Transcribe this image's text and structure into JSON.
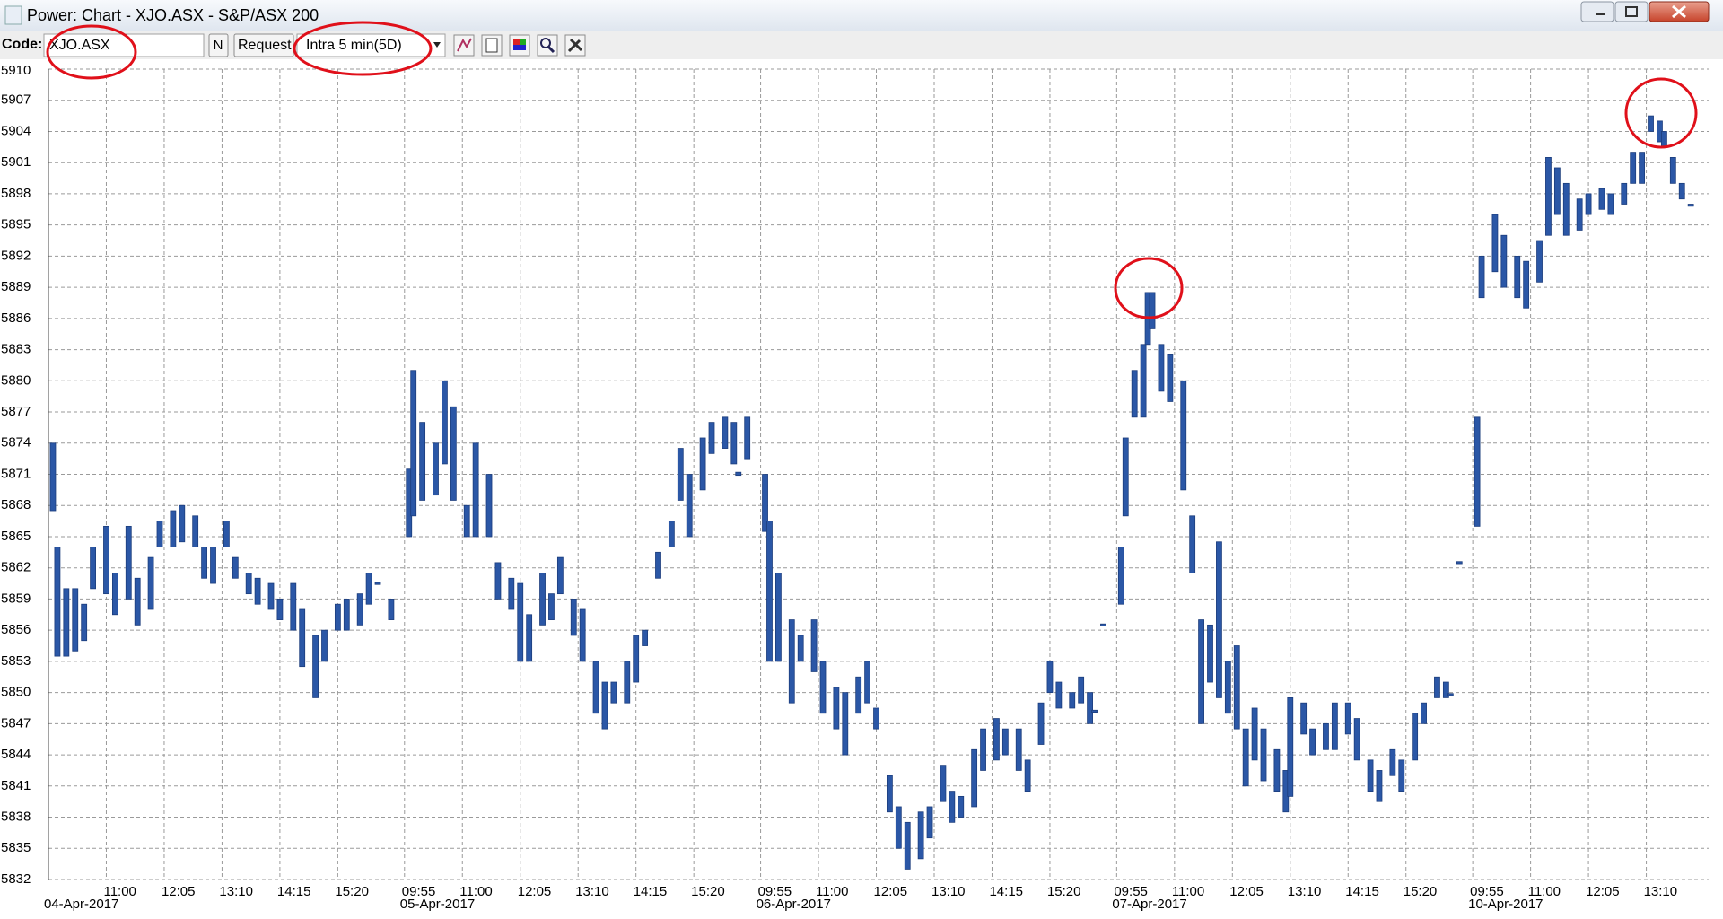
{
  "window": {
    "title": "Power: Chart - XJO.ASX - S&P/ASX 200"
  },
  "toolbar": {
    "code_label": "Code:",
    "code_value": "XJO.ASX",
    "n_button": "N",
    "request_button": "Request",
    "interval": "Intra 5 min(5D)"
  },
  "chart_data": {
    "type": "range",
    "color": "#2b57a6",
    "grid": true,
    "xlim": [
      -1,
      372
    ],
    "ylim": [
      5832,
      5910
    ],
    "yticks": [
      5832,
      5835,
      5838,
      5841,
      5844,
      5847,
      5850,
      5853,
      5856,
      5859,
      5862,
      5865,
      5868,
      5871,
      5874,
      5877,
      5880,
      5883,
      5886,
      5889,
      5892,
      5895,
      5898,
      5901,
      5904,
      5907,
      5910
    ],
    "xticks": [
      {
        "value": 12,
        "label": "11:00"
      },
      {
        "value": 25,
        "label": "12:05"
      },
      {
        "value": 38,
        "label": "13:10"
      },
      {
        "value": 51,
        "label": "14:15"
      },
      {
        "value": 64,
        "label": "15:20"
      },
      {
        "value": 79,
        "label": "09:55"
      },
      {
        "value": 92,
        "label": "11:00"
      },
      {
        "value": 105,
        "label": "12:05"
      },
      {
        "value": 118,
        "label": "13:10"
      },
      {
        "value": 131,
        "label": "14:15"
      },
      {
        "value": 144,
        "label": "15:20"
      },
      {
        "value": 159,
        "label": "09:55"
      },
      {
        "value": 172,
        "label": "11:00"
      },
      {
        "value": 185,
        "label": "12:05"
      },
      {
        "value": 198,
        "label": "13:10"
      },
      {
        "value": 211,
        "label": "14:15"
      },
      {
        "value": 224,
        "label": "15:20"
      },
      {
        "value": 239,
        "label": "09:55"
      },
      {
        "value": 252,
        "label": "11:00"
      },
      {
        "value": 265,
        "label": "12:05"
      },
      {
        "value": 278,
        "label": "13:10"
      },
      {
        "value": 291,
        "label": "14:15"
      },
      {
        "value": 304,
        "label": "15:20"
      },
      {
        "value": 319,
        "label": "09:55"
      },
      {
        "value": 332,
        "label": "11:00"
      },
      {
        "value": 345,
        "label": "12:05"
      },
      {
        "value": 358,
        "label": "13:10"
      }
    ],
    "date_labels": [
      {
        "value": -1,
        "label": "04-Apr-2017"
      },
      {
        "value": 79,
        "label": "05-Apr-2017"
      },
      {
        "value": 159,
        "label": "06-Apr-2017"
      },
      {
        "value": 239,
        "label": "07-Apr-2017"
      },
      {
        "value": 319,
        "label": "10-Apr-2017"
      }
    ],
    "bars": {
      "x": [
        0,
        1,
        3,
        5,
        7,
        9,
        12,
        14,
        17,
        19,
        22,
        24,
        27,
        29,
        32,
        34,
        36,
        39,
        41,
        44,
        46,
        49,
        51,
        54,
        56,
        59,
        61,
        64,
        66,
        69,
        71,
        73,
        76,
        80,
        81,
        83,
        86,
        88,
        90,
        93,
        95,
        98,
        100,
        103,
        105,
        107,
        110,
        112,
        114,
        117,
        119,
        122,
        124,
        126,
        129,
        131,
        133,
        136,
        139,
        141,
        143,
        146,
        148,
        151,
        153,
        154,
        156,
        160,
        161,
        163,
        166,
        168,
        171,
        173,
        176,
        178,
        181,
        183,
        185,
        188,
        190,
        192,
        195,
        197,
        200,
        202,
        204,
        207,
        209,
        212,
        214,
        217,
        219,
        222,
        224,
        226,
        229,
        231,
        233,
        234,
        236,
        240,
        241,
        243,
        245,
        246,
        247,
        249,
        251,
        254,
        256,
        258,
        260,
        262,
        264,
        266,
        268,
        270,
        272,
        275,
        277,
        278,
        281,
        283,
        286,
        288,
        291,
        293,
        296,
        298,
        301,
        303,
        306,
        308,
        311,
        313,
        314,
        316,
        320,
        321,
        324,
        326,
        329,
        331,
        334,
        336,
        338,
        340,
        343,
        345,
        348,
        350,
        353,
        355,
        357,
        359,
        361,
        362,
        364,
        366,
        368
      ],
      "low": [
        5867.5,
        5853.5,
        5853.5,
        5854,
        5855,
        5860,
        5859.5,
        5857.5,
        5859,
        5856.5,
        5858,
        5864,
        5864,
        5864.5,
        5864,
        5861,
        5860.5,
        5864,
        5861,
        5859.5,
        5858.5,
        5858,
        5857,
        5856,
        5852.5,
        5849.5,
        5853,
        5856,
        5856,
        5856.5,
        5858.5,
        5860.4,
        5857,
        5865,
        5867,
        5868.5,
        5869,
        5872,
        5868.5,
        5865,
        5865,
        5865,
        5859,
        5858,
        5853,
        5853,
        5856.5,
        5857,
        5859.5,
        5855.5,
        5853,
        5848,
        5846.5,
        5849,
        5849,
        5851,
        5854.5,
        5861,
        5864,
        5868.5,
        5865,
        5869.5,
        5873,
        5873.5,
        5872,
        5870.9,
        5872.5,
        5865.5,
        5853,
        5853,
        5849,
        5853,
        5852,
        5848,
        5846.5,
        5844,
        5848,
        5849,
        5846.5,
        5838.5,
        5835,
        5833,
        5834,
        5836,
        5839.5,
        5837.5,
        5838,
        5839,
        5842.5,
        5843.5,
        5844,
        5842.5,
        5840.5,
        5845,
        5850,
        5848.5,
        5848.5,
        5849,
        5847,
        5848.1,
        5856.4,
        5858.5,
        5867,
        5876.5,
        5876.5,
        5883.5,
        5885,
        5879,
        5878,
        5869.5,
        5861.5,
        5847,
        5851,
        5849.5,
        5848,
        5846.5,
        5841,
        5843.5,
        5841.5,
        5840.5,
        5838.5,
        5840,
        5846,
        5844,
        5844.5,
        5844.5,
        5846,
        5843.5,
        5840.5,
        5839.5,
        5842,
        5840.5,
        5843.5,
        5847,
        5849.5,
        5849.5,
        5849.7,
        5862.4,
        5866,
        5888,
        5890.5,
        5889,
        5888,
        5887,
        5889.5,
        5894,
        5896,
        5894,
        5894.5,
        5896,
        5896.5,
        5896,
        5897,
        5899,
        5899,
        5904,
        5903,
        5902.5,
        5899,
        5897.5,
        5896.8
      ],
      "high": [
        5874,
        5864,
        5860,
        5860,
        5858.5,
        5864,
        5866,
        5861.5,
        5866,
        5861,
        5863,
        5866.5,
        5867.5,
        5868,
        5867,
        5864,
        5864,
        5866.5,
        5863,
        5861.5,
        5861,
        5860.5,
        5859,
        5860.5,
        5858,
        5855.5,
        5856,
        5858.5,
        5859,
        5859.5,
        5861.5,
        5860.6,
        5859,
        5871.5,
        5881,
        5876,
        5874,
        5880,
        5877.5,
        5868,
        5874,
        5871,
        5862.5,
        5861,
        5860.5,
        5857.5,
        5861.5,
        5859.5,
        5863,
        5859,
        5858,
        5853,
        5851,
        5851,
        5853,
        5855.5,
        5856,
        5863.5,
        5866.5,
        5873.5,
        5871,
        5874.5,
        5876,
        5876.5,
        5876,
        5871.2,
        5876.5,
        5871,
        5866.5,
        5861.5,
        5857,
        5855.5,
        5857,
        5853,
        5850.5,
        5850,
        5851.5,
        5853,
        5848.5,
        5842,
        5839,
        5837.5,
        5838.5,
        5839,
        5843,
        5840.5,
        5840,
        5844.5,
        5846.5,
        5847.5,
        5846.5,
        5846.5,
        5843.5,
        5849,
        5853,
        5851,
        5850,
        5851.5,
        5850,
        5848.3,
        5856.6,
        5864,
        5874.5,
        5881,
        5883.5,
        5888.5,
        5888.5,
        5883.5,
        5882.5,
        5880,
        5867,
        5857,
        5856.5,
        5864.5,
        5853,
        5854.5,
        5846.5,
        5848.5,
        5846.5,
        5844.5,
        5842.5,
        5849.5,
        5849,
        5846.5,
        5847,
        5849,
        5849,
        5847.5,
        5843.5,
        5842.5,
        5844.5,
        5843.5,
        5848,
        5849,
        5851.5,
        5851,
        5849.9,
        5862.6,
        5876.5,
        5892,
        5896,
        5894,
        5892,
        5891.5,
        5893.5,
        5901.5,
        5900.5,
        5899,
        5897.5,
        5898,
        5898.5,
        5898,
        5899,
        5902,
        5902,
        5905.5,
        5905,
        5904,
        5901.5,
        5899,
        5897
      ]
    }
  }
}
